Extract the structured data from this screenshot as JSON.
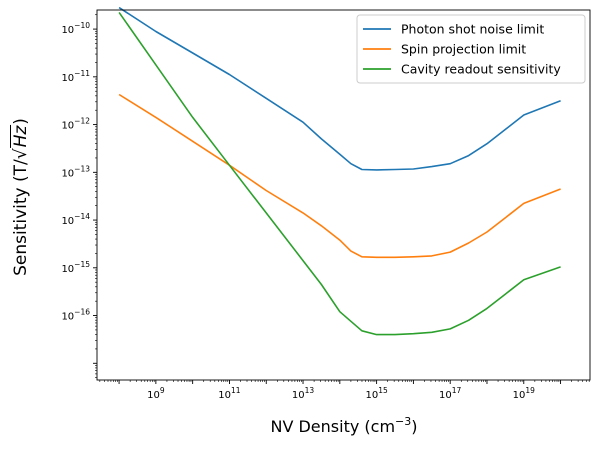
{
  "chart_data": {
    "type": "line",
    "title": "",
    "xlabel_base": "NV Density (cm",
    "xlabel_exp": "−3",
    "xlabel_close": ")",
    "ylabel_prefix": "Sensitivity (T/",
    "ylabel_sqrt_arg": "Hz",
    "ylabel_close": ")",
    "x_scale": "log",
    "y_scale": "log",
    "xlim_log10": [
      7.4,
      20.8
    ],
    "ylim_log10": [
      -17.35,
      -9.6
    ],
    "x_ticks": [
      {
        "base": "10",
        "exp": "9",
        "value_log10": 9
      },
      {
        "base": "10",
        "exp": "11",
        "value_log10": 11
      },
      {
        "base": "10",
        "exp": "13",
        "value_log10": 13
      },
      {
        "base": "10",
        "exp": "15",
        "value_log10": 15
      },
      {
        "base": "10",
        "exp": "17",
        "value_log10": 17
      },
      {
        "base": "10",
        "exp": "19",
        "value_log10": 19
      }
    ],
    "y_ticks": [
      {
        "base": "10",
        "exp": "−16",
        "value_log10": -16
      },
      {
        "base": "10",
        "exp": "−15",
        "value_log10": -15
      },
      {
        "base": "10",
        "exp": "−14",
        "value_log10": -14
      },
      {
        "base": "10",
        "exp": "−13",
        "value_log10": -13
      },
      {
        "base": "10",
        "exp": "−12",
        "value_log10": -12
      },
      {
        "base": "10",
        "exp": "−11",
        "value_log10": -11
      },
      {
        "base": "10",
        "exp": "−10",
        "value_log10": -10
      }
    ],
    "grid": false,
    "legend_position": "top-right",
    "series": [
      {
        "name": "Photon shot noise limit",
        "color": "#1f77b4",
        "points_log10": [
          [
            8.0,
            -9.55
          ],
          [
            9.0,
            -10.05
          ],
          [
            10.0,
            -10.5
          ],
          [
            11.0,
            -10.95
          ],
          [
            12.0,
            -11.45
          ],
          [
            13.0,
            -11.95
          ],
          [
            13.5,
            -12.3
          ],
          [
            14.0,
            -12.62
          ],
          [
            14.3,
            -12.82
          ],
          [
            14.6,
            -12.94
          ],
          [
            15.0,
            -12.95
          ],
          [
            15.5,
            -12.94
          ],
          [
            16.0,
            -12.93
          ],
          [
            16.5,
            -12.88
          ],
          [
            17.0,
            -12.82
          ],
          [
            17.5,
            -12.65
          ],
          [
            18.0,
            -12.4
          ],
          [
            18.5,
            -12.1
          ],
          [
            19.0,
            -11.8
          ],
          [
            20.0,
            -11.5
          ]
        ]
      },
      {
        "name": "Spin projection limit",
        "color": "#ff7f0e",
        "points_log10": [
          [
            8.0,
            -11.37
          ],
          [
            9.0,
            -11.85
          ],
          [
            10.0,
            -12.35
          ],
          [
            11.0,
            -12.85
          ],
          [
            12.0,
            -13.38
          ],
          [
            13.0,
            -13.85
          ],
          [
            13.5,
            -14.12
          ],
          [
            14.0,
            -14.42
          ],
          [
            14.3,
            -14.65
          ],
          [
            14.6,
            -14.77
          ],
          [
            15.0,
            -14.78
          ],
          [
            15.5,
            -14.78
          ],
          [
            16.0,
            -14.77
          ],
          [
            16.5,
            -14.75
          ],
          [
            17.0,
            -14.67
          ],
          [
            17.5,
            -14.48
          ],
          [
            18.0,
            -14.25
          ],
          [
            18.5,
            -13.95
          ],
          [
            19.0,
            -13.65
          ],
          [
            20.0,
            -13.35
          ]
        ]
      },
      {
        "name": "Cavity readout sensitivity",
        "color": "#2ca02c",
        "points_log10": [
          [
            8.0,
            -9.65
          ],
          [
            9.0,
            -10.75
          ],
          [
            10.0,
            -11.85
          ],
          [
            11.0,
            -12.85
          ],
          [
            12.0,
            -13.85
          ],
          [
            13.0,
            -14.85
          ],
          [
            13.5,
            -15.35
          ],
          [
            14.0,
            -15.92
          ],
          [
            14.3,
            -16.12
          ],
          [
            14.6,
            -16.32
          ],
          [
            15.0,
            -16.4
          ],
          [
            15.5,
            -16.4
          ],
          [
            16.0,
            -16.38
          ],
          [
            16.5,
            -16.35
          ],
          [
            17.0,
            -16.28
          ],
          [
            17.5,
            -16.1
          ],
          [
            18.0,
            -15.85
          ],
          [
            18.5,
            -15.55
          ],
          [
            19.0,
            -15.25
          ],
          [
            20.0,
            -14.98
          ]
        ]
      }
    ]
  }
}
